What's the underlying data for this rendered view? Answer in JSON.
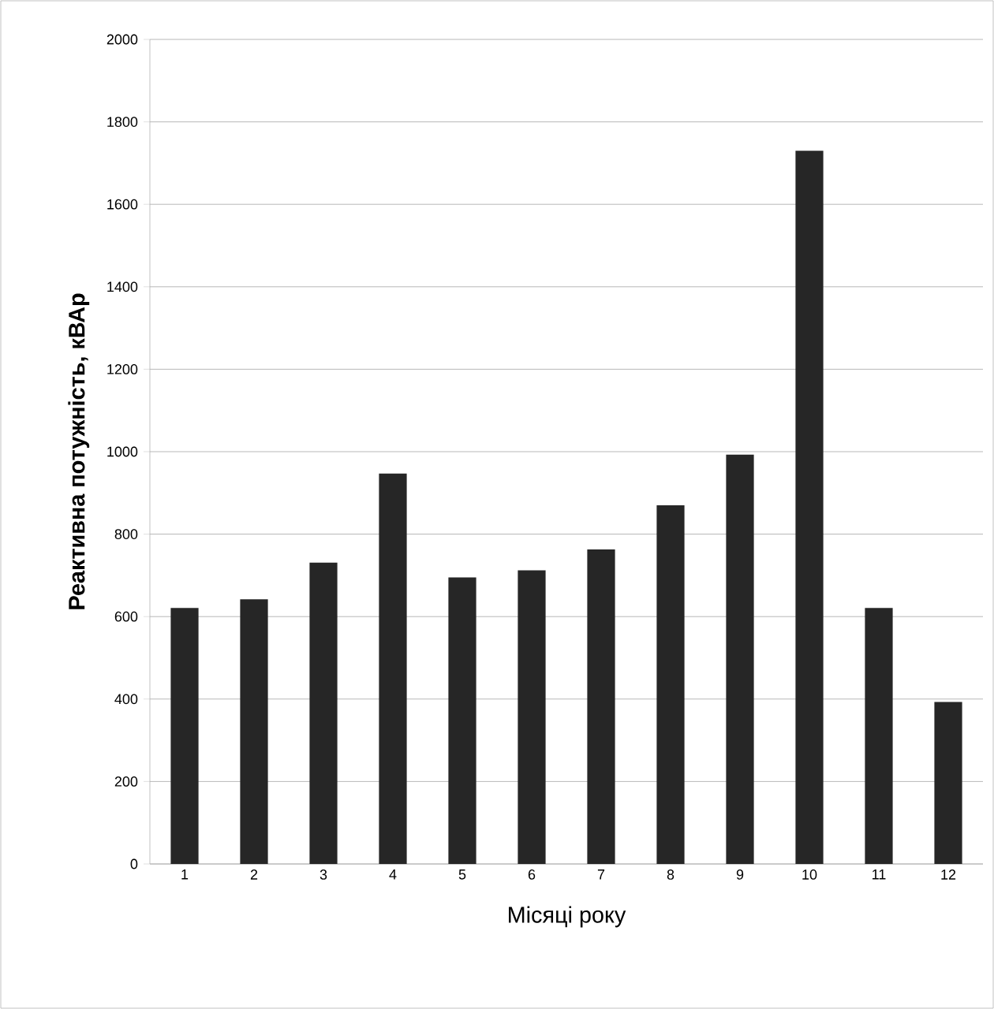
{
  "chart_data": {
    "type": "bar",
    "xlabel": "Місяці року",
    "ylabel": "Реактивна потужність, кВАр",
    "categories": [
      "1",
      "2",
      "3",
      "4",
      "5",
      "6",
      "7",
      "8",
      "9",
      "10",
      "11",
      "12"
    ],
    "values": [
      621,
      642,
      731,
      947,
      695,
      712,
      763,
      870,
      993,
      1730,
      621,
      393
    ],
    "color": "#262626",
    "ylim": [
      0,
      2000
    ],
    "yticks": [
      0,
      200,
      400,
      600,
      800,
      1000,
      1200,
      1400,
      1600,
      1800,
      2000
    ],
    "grid": "y"
  }
}
